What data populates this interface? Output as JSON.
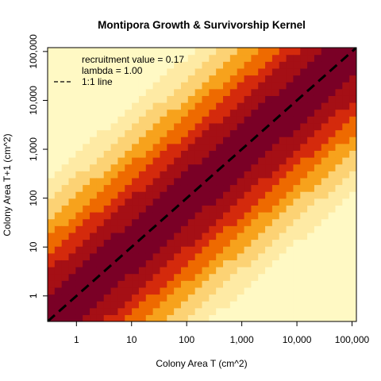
{
  "chart_data": {
    "type": "heatmap",
    "title": "Montipora Growth & Survivorship Kernel",
    "xlabel": "Colony Area T (cm^2)",
    "ylabel": "Colony Area T+1 (cm^2)",
    "x_scale": "log",
    "y_scale": "log",
    "xlim": [
      0.3,
      120000
    ],
    "ylim": [
      0.3,
      120000
    ],
    "x_ticks": [
      1,
      10,
      100,
      1000,
      10000,
      100000
    ],
    "x_tick_labels": [
      "1",
      "10",
      "100",
      "1,000",
      "10,000",
      "100,000"
    ],
    "y_ticks": [
      1,
      10,
      100,
      1000,
      10000,
      100000
    ],
    "y_tick_labels": [
      "1",
      "10",
      "100",
      "1,000",
      "10,000",
      "100,000"
    ],
    "grid": false,
    "color_palette": [
      "#7a0026",
      "#a50f15",
      "#d42a0c",
      "#ee6a00",
      "#f7a21c",
      "#fcd274",
      "#feeaa4",
      "#fff9c4"
    ],
    "kernel_bands_log10": [
      0.55,
      1.0,
      1.35,
      1.7,
      2.05,
      2.45,
      2.9
    ],
    "reference_line": {
      "label": "1:1 line",
      "slope": 1,
      "intercept": 0,
      "style": "dashed",
      "color": "#000000"
    },
    "legend": {
      "position": "top-left",
      "entries": [
        {
          "text": "recruitment value = 0.17",
          "symbol": "none"
        },
        {
          "text": "lambda = 1.00",
          "symbol": "none"
        },
        {
          "text": "1:1 line",
          "symbol": "dashed-line"
        }
      ]
    }
  }
}
